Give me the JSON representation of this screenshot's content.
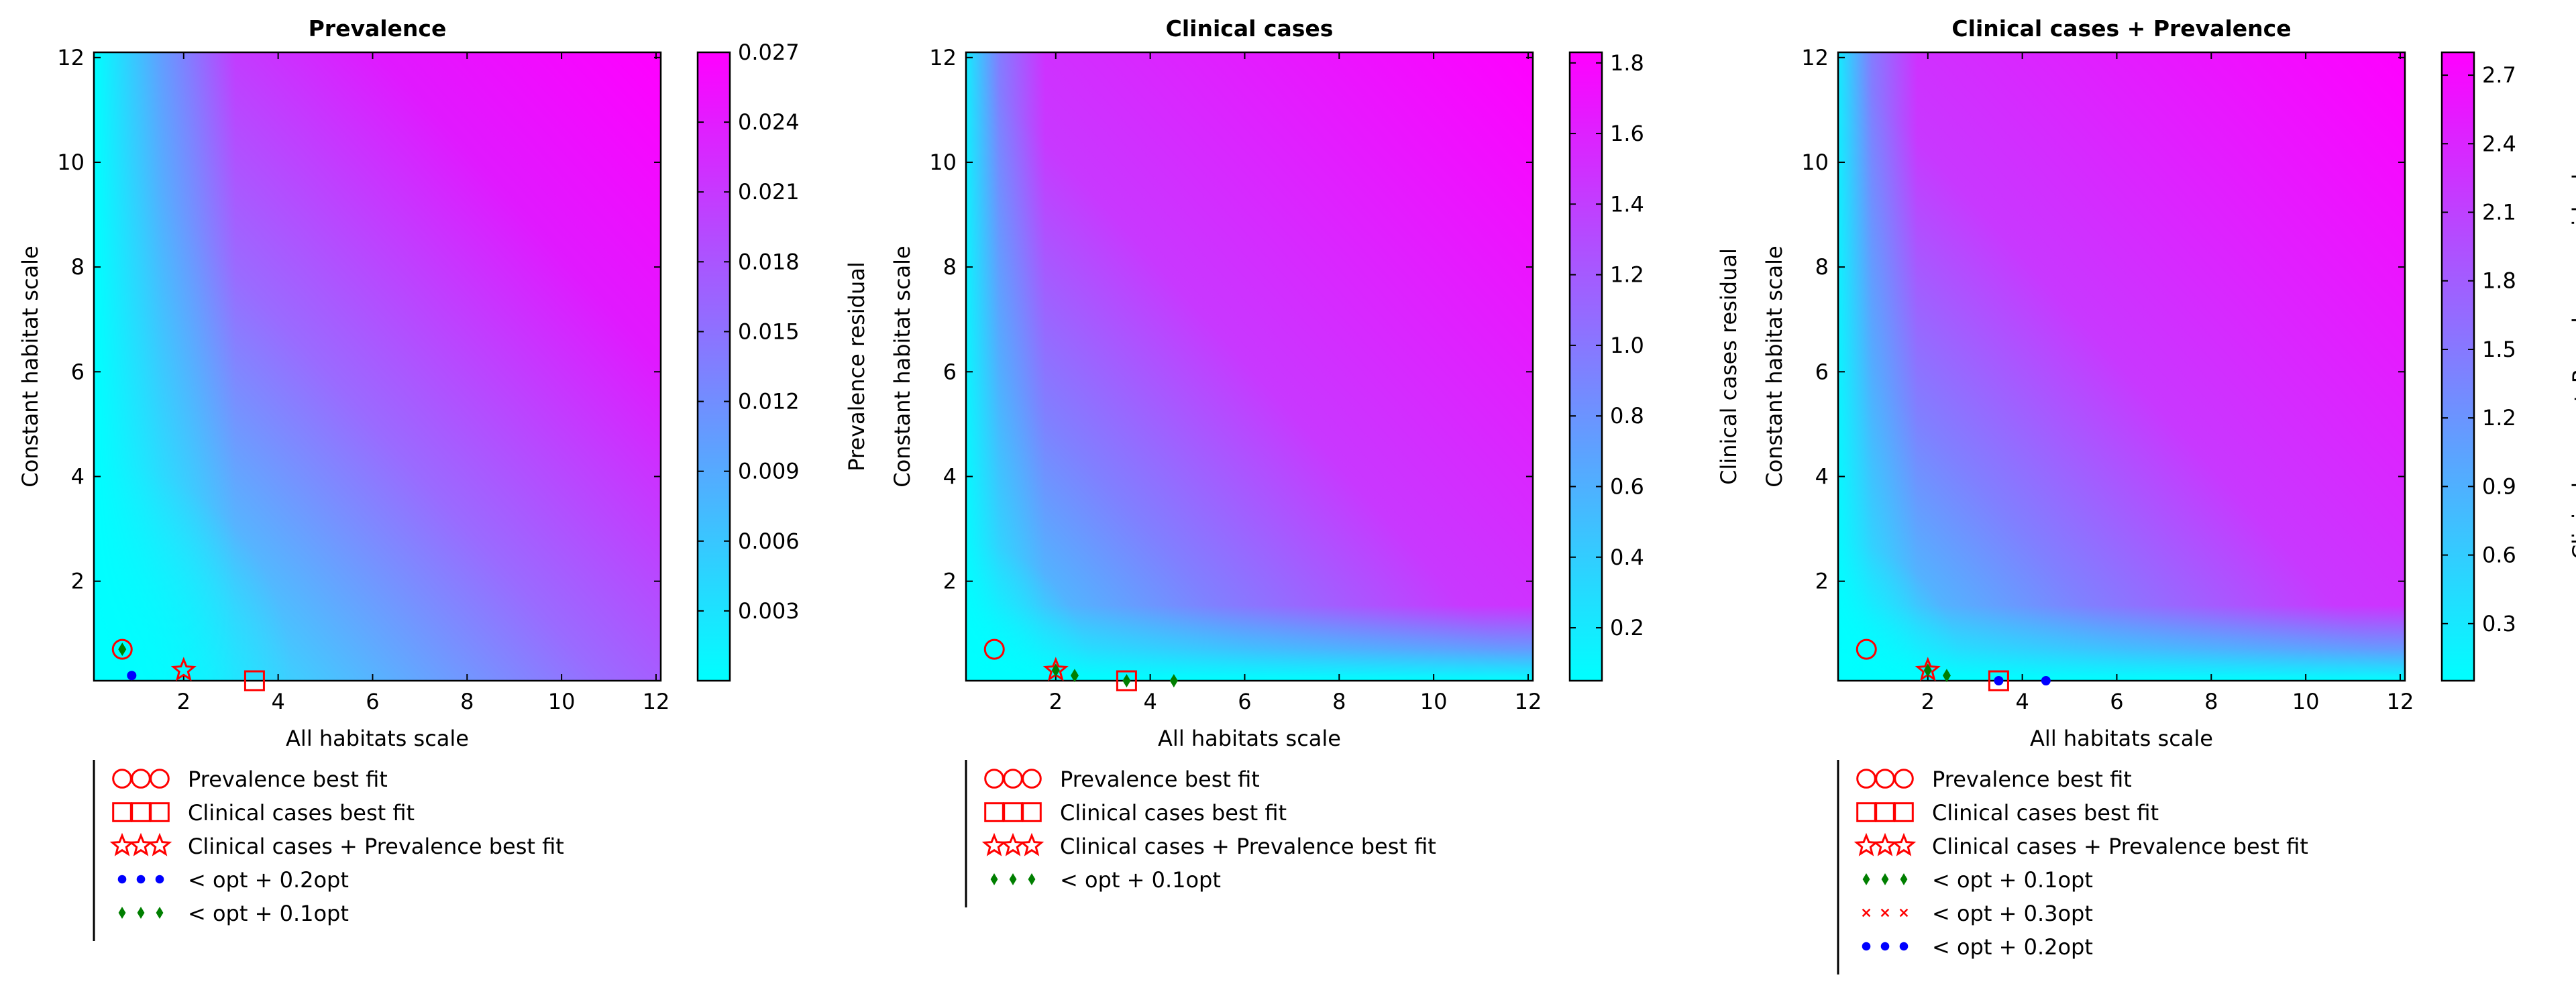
{
  "chart_data": [
    {
      "type": "heatmap",
      "title": "Prevalence",
      "xlabel": "All habitats scale",
      "ylabel": "Constant habitat scale",
      "xlim": [
        0.1,
        12.1
      ],
      "ylim": [
        0.1,
        12.1
      ],
      "xticks": [
        2,
        4,
        6,
        8,
        10,
        12
      ],
      "yticks": [
        2,
        4,
        6,
        8,
        10,
        12
      ],
      "colormap": [
        "#00ffff",
        "#ff00ff"
      ],
      "colorbar": {
        "label": "Prevalence residual",
        "range": [
          0.0,
          0.027
        ],
        "ticks": [
          0.003,
          0.006,
          0.009,
          0.012,
          0.015,
          0.018,
          0.021,
          0.024,
          0.027
        ],
        "tick_labels": [
          "0.003",
          "0.006",
          "0.009",
          "0.012",
          "0.015",
          "0.018",
          "0.021",
          "0.024",
          "0.027"
        ]
      },
      "markers": [
        {
          "kind": "circle",
          "color": "#ff0000",
          "x": 0.7,
          "y": 0.7
        },
        {
          "kind": "square",
          "color": "#ff0000",
          "x": 3.5,
          "y": 0.1
        },
        {
          "kind": "star",
          "color": "#ff0000",
          "x": 2.0,
          "y": 0.3
        },
        {
          "kind": "dot",
          "color": "#0000ff",
          "x": 0.9,
          "y": 0.2
        },
        {
          "kind": "diamond",
          "color": "#007f00",
          "x": 0.7,
          "y": 0.7
        }
      ],
      "legend": [
        {
          "kind": "circle",
          "color": "#ff0000",
          "label": "Prevalence best fit"
        },
        {
          "kind": "square",
          "color": "#ff0000",
          "label": "Clinical cases best fit"
        },
        {
          "kind": "star",
          "color": "#ff0000",
          "label": "Clinical cases + Prevalence best fit"
        },
        {
          "kind": "dot",
          "color": "#0000ff",
          "label": "< opt + 0.2opt"
        },
        {
          "kind": "diamond",
          "color": "#007f00",
          "label": "< opt + 0.1opt"
        }
      ]
    },
    {
      "type": "heatmap",
      "title": "Clinical cases",
      "xlabel": "All habitats scale",
      "ylabel": "Constant habitat scale",
      "xlim": [
        0.1,
        12.1
      ],
      "ylim": [
        0.1,
        12.1
      ],
      "xticks": [
        2,
        4,
        6,
        8,
        10,
        12
      ],
      "yticks": [
        2,
        4,
        6,
        8,
        10,
        12
      ],
      "colormap": [
        "#00ffff",
        "#ff00ff"
      ],
      "colorbar": {
        "label": "Clinical cases residual",
        "range": [
          0.05,
          1.83
        ],
        "ticks": [
          0.2,
          0.4,
          0.6,
          0.8,
          1.0,
          1.2,
          1.4,
          1.6,
          1.8
        ],
        "tick_labels": [
          "0.2",
          "0.4",
          "0.6",
          "0.8",
          "1.0",
          "1.2",
          "1.4",
          "1.6",
          "1.8"
        ]
      },
      "markers": [
        {
          "kind": "circle",
          "color": "#ff0000",
          "x": 0.7,
          "y": 0.7
        },
        {
          "kind": "square",
          "color": "#ff0000",
          "x": 3.5,
          "y": 0.1
        },
        {
          "kind": "star",
          "color": "#ff0000",
          "x": 2.0,
          "y": 0.3
        },
        {
          "kind": "diamond",
          "color": "#007f00",
          "x": 2.0,
          "y": 0.3
        },
        {
          "kind": "diamond",
          "color": "#007f00",
          "x": 2.4,
          "y": 0.2
        },
        {
          "kind": "diamond",
          "color": "#007f00",
          "x": 3.5,
          "y": 0.1
        },
        {
          "kind": "diamond",
          "color": "#007f00",
          "x": 4.5,
          "y": 0.1
        }
      ],
      "legend": [
        {
          "kind": "circle",
          "color": "#ff0000",
          "label": "Prevalence best fit"
        },
        {
          "kind": "square",
          "color": "#ff0000",
          "label": "Clinical cases best fit"
        },
        {
          "kind": "star",
          "color": "#ff0000",
          "label": "Clinical cases + Prevalence best fit"
        },
        {
          "kind": "diamond",
          "color": "#007f00",
          "label": "< opt + 0.1opt"
        }
      ]
    },
    {
      "type": "heatmap",
      "title": "Clinical cases + Prevalence",
      "xlabel": "All habitats scale",
      "ylabel": "Constant habitat scale",
      "xlim": [
        0.1,
        12.1
      ],
      "ylim": [
        0.1,
        12.1
      ],
      "xticks": [
        2,
        4,
        6,
        8,
        10,
        12
      ],
      "yticks": [
        2,
        4,
        6,
        8,
        10,
        12
      ],
      "colormap": [
        "#00ffff",
        "#ff00ff"
      ],
      "colorbar": {
        "label": "Clinical cases + Prevalence residual",
        "range": [
          0.05,
          2.8
        ],
        "ticks": [
          0.3,
          0.6,
          0.9,
          1.2,
          1.5,
          1.8,
          2.1,
          2.4,
          2.7
        ],
        "tick_labels": [
          "0.3",
          "0.6",
          "0.9",
          "1.2",
          "1.5",
          "1.8",
          "2.1",
          "2.4",
          "2.7"
        ]
      },
      "markers": [
        {
          "kind": "circle",
          "color": "#ff0000",
          "x": 0.7,
          "y": 0.7
        },
        {
          "kind": "square",
          "color": "#ff0000",
          "x": 3.5,
          "y": 0.1
        },
        {
          "kind": "star",
          "color": "#ff0000",
          "x": 2.0,
          "y": 0.3
        },
        {
          "kind": "diamond",
          "color": "#007f00",
          "x": 2.0,
          "y": 0.3
        },
        {
          "kind": "diamond",
          "color": "#007f00",
          "x": 2.4,
          "y": 0.2
        },
        {
          "kind": "dot",
          "color": "#0000ff",
          "x": 3.5,
          "y": 0.1
        },
        {
          "kind": "dot",
          "color": "#0000ff",
          "x": 4.5,
          "y": 0.1
        }
      ],
      "legend": [
        {
          "kind": "circle",
          "color": "#ff0000",
          "label": "Prevalence best fit"
        },
        {
          "kind": "square",
          "color": "#ff0000",
          "label": "Clinical cases best fit"
        },
        {
          "kind": "star",
          "color": "#ff0000",
          "label": "Clinical cases + Prevalence best fit"
        },
        {
          "kind": "diamond",
          "color": "#007f00",
          "label": "< opt + 0.1opt"
        },
        {
          "kind": "cross",
          "color": "#ff0000",
          "label": "< opt + 0.3opt"
        },
        {
          "kind": "dot",
          "color": "#0000ff",
          "label": "< opt + 0.2opt"
        }
      ]
    }
  ]
}
